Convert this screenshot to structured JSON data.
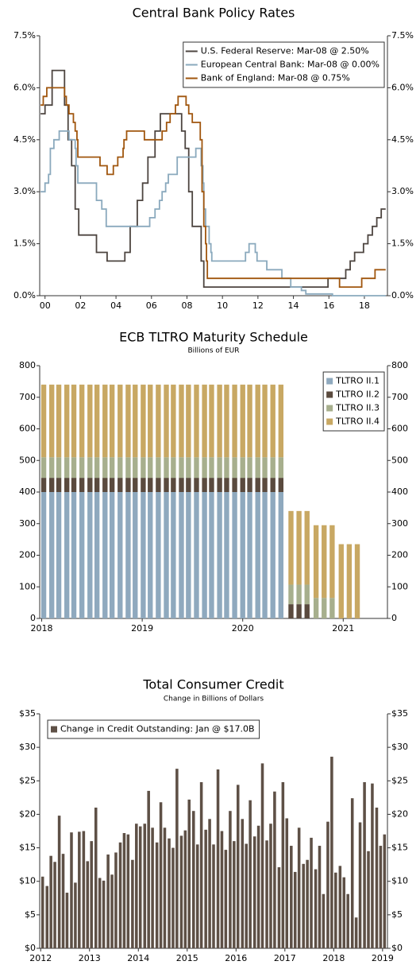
{
  "chart_data": [
    {
      "type": "line",
      "title": "Central Bank Policy Rates",
      "step": true,
      "legend": "top-right",
      "xlim": [
        1999.7,
        2019.3
      ],
      "xticks": [
        {
          "value": 2000,
          "label": "00"
        },
        {
          "value": 2002,
          "label": "02"
        },
        {
          "value": 2004,
          "label": "04"
        },
        {
          "value": 2006,
          "label": "06"
        },
        {
          "value": 2008,
          "label": "08"
        },
        {
          "value": 2010,
          "label": "10"
        },
        {
          "value": 2012,
          "label": "12"
        },
        {
          "value": 2014,
          "label": "14"
        },
        {
          "value": 2016,
          "label": "16"
        },
        {
          "value": 2018,
          "label": "18"
        }
      ],
      "ylim": [
        0,
        7.5
      ],
      "yticks": [
        {
          "value": 0,
          "label": "0.0%"
        },
        {
          "value": 1.5,
          "label": "1.5%"
        },
        {
          "value": 3,
          "label": "3.0%"
        },
        {
          "value": 4.5,
          "label": "4.5%"
        },
        {
          "value": 6,
          "label": "6.0%"
        },
        {
          "value": 7.5,
          "label": "7.5%"
        }
      ],
      "y2lim": [
        0,
        7.5
      ],
      "y2ticks": [
        {
          "value": 0,
          "label": "0.0%"
        },
        {
          "value": 1.5,
          "label": "1.5%"
        },
        {
          "value": 3,
          "label": "3.0%"
        },
        {
          "value": 4.5,
          "label": "4.5%"
        },
        {
          "value": 6,
          "label": "6.0%"
        },
        {
          "value": 7.5,
          "label": "7.5%"
        }
      ],
      "series": [
        {
          "name": "U.S. Federal Reserve: Mar-08 @ 2.50%",
          "color": "#4d4540",
          "x": [
            1999.75,
            2000.0,
            2000.4,
            2001.0,
            2001.1,
            2001.3,
            2001.5,
            2001.7,
            2001.9,
            2002.9,
            2003.5,
            2004.5,
            2004.8,
            2005.2,
            2005.5,
            2005.8,
            2006.2,
            2006.5,
            2007.7,
            2007.9,
            2008.1,
            2008.3,
            2008.8,
            2008.95,
            2015.95,
            2016.95,
            2017.2,
            2017.45,
            2017.95,
            2018.2,
            2018.45,
            2018.7,
            2018.95,
            2019.2
          ],
          "values": [
            5.25,
            5.5,
            6.5,
            6.5,
            5.5,
            4.5,
            3.75,
            2.5,
            1.75,
            1.25,
            1.0,
            1.25,
            2.0,
            2.75,
            3.25,
            4.0,
            4.75,
            5.25,
            4.75,
            4.25,
            3.0,
            2.0,
            1.0,
            0.25,
            0.5,
            0.75,
            1.0,
            1.25,
            1.5,
            1.75,
            2.0,
            2.25,
            2.5,
            2.5
          ]
        },
        {
          "name": "European Central Bank: Mar-08 @ 0.00%",
          "color": "#8aa9bd",
          "x": [
            1999.75,
            2000.0,
            2000.2,
            2000.3,
            2000.5,
            2000.8,
            2001.35,
            2001.7,
            2001.75,
            2001.85,
            2002.9,
            2003.2,
            2003.45,
            2005.9,
            2006.2,
            2006.45,
            2006.6,
            2006.8,
            2006.95,
            2007.45,
            2008.5,
            2008.8,
            2008.9,
            2008.95,
            2009.05,
            2009.25,
            2009.35,
            2009.4,
            2011.3,
            2011.5,
            2011.85,
            2011.95,
            2012.5,
            2013.35,
            2013.85,
            2014.45,
            2014.7,
            2016.2,
            2019.2
          ],
          "values": [
            3.0,
            3.25,
            3.5,
            4.25,
            4.5,
            4.75,
            4.5,
            4.25,
            3.75,
            3.25,
            2.75,
            2.5,
            2.0,
            2.25,
            2.5,
            2.75,
            3.0,
            3.25,
            3.5,
            4.0,
            4.25,
            3.75,
            3.25,
            2.5,
            2.0,
            1.5,
            1.25,
            1.0,
            1.25,
            1.5,
            1.25,
            1.0,
            0.75,
            0.5,
            0.25,
            0.15,
            0.05,
            0.0,
            0.0
          ]
        },
        {
          "name": "Bank of England: Mar-08 @ 0.75%",
          "color": "#a0560e",
          "x": [
            1999.75,
            1999.9,
            2000.1,
            2001.1,
            2001.2,
            2001.35,
            2001.6,
            2001.7,
            2001.8,
            2001.85,
            2003.1,
            2003.5,
            2003.85,
            2004.1,
            2004.4,
            2004.45,
            2004.6,
            2005.6,
            2006.6,
            2006.85,
            2007.05,
            2007.35,
            2007.5,
            2007.95,
            2008.1,
            2008.3,
            2008.75,
            2008.85,
            2008.95,
            2009.05,
            2009.1,
            2009.15,
            2016.6,
            2017.85,
            2018.6,
            2019.2
          ],
          "values": [
            5.5,
            5.75,
            6.0,
            5.75,
            5.5,
            5.25,
            5.0,
            4.75,
            4.5,
            4.0,
            3.75,
            3.5,
            3.75,
            4.0,
            4.25,
            4.5,
            4.75,
            4.5,
            4.75,
            5.0,
            5.25,
            5.5,
            5.75,
            5.5,
            5.25,
            5.0,
            4.5,
            3.0,
            2.0,
            1.5,
            1.0,
            0.5,
            0.25,
            0.5,
            0.75,
            0.75
          ]
        }
      ]
    },
    {
      "type": "bar",
      "stacked": true,
      "title": "ECB TLTRO Maturity Schedule",
      "subtitle": "Billions of EUR",
      "legend": "top-right",
      "xlim": [
        2017.98,
        2021.44
      ],
      "xticks": [
        2018,
        2019,
        2020,
        2021
      ],
      "ylim": [
        0,
        800
      ],
      "yticks": [
        0,
        100,
        200,
        300,
        400,
        500,
        600,
        700,
        800
      ],
      "y2lim": [
        0,
        800
      ],
      "y2ticks": [
        0,
        100,
        200,
        300,
        400,
        500,
        600,
        700,
        800
      ],
      "x": [
        2018.02,
        2018.1,
        2018.17,
        2018.25,
        2018.32,
        2018.4,
        2018.48,
        2018.55,
        2018.63,
        2018.7,
        2018.78,
        2018.86,
        2018.93,
        2019.01,
        2019.08,
        2019.16,
        2019.24,
        2019.31,
        2019.39,
        2019.46,
        2019.54,
        2019.62,
        2019.69,
        2019.77,
        2019.84,
        2019.92,
        2020.0,
        2020.07,
        2020.15,
        2020.22,
        2020.3,
        2020.38,
        2020.48,
        2020.56,
        2020.64,
        2020.73,
        2020.81,
        2020.89,
        2020.98,
        2021.06,
        2021.14
      ],
      "series": [
        {
          "name": "TLTRO II.1",
          "color": "#8fa9be",
          "values": [
            400,
            400,
            400,
            400,
            400,
            400,
            400,
            400,
            400,
            400,
            400,
            400,
            400,
            400,
            400,
            400,
            400,
            400,
            400,
            400,
            400,
            400,
            400,
            400,
            400,
            400,
            400,
            400,
            400,
            400,
            400,
            400,
            0,
            0,
            0,
            0,
            0,
            0,
            0,
            0,
            0
          ]
        },
        {
          "name": "TLTRO II.2",
          "color": "#5a4a3e",
          "values": [
            45,
            45,
            45,
            45,
            45,
            45,
            45,
            45,
            45,
            45,
            45,
            45,
            45,
            45,
            45,
            45,
            45,
            45,
            45,
            45,
            45,
            45,
            45,
            45,
            45,
            45,
            45,
            45,
            45,
            45,
            45,
            45,
            45,
            45,
            45,
            0,
            0,
            0,
            0,
            0,
            0
          ]
        },
        {
          "name": "TLTRO II.3",
          "color": "#a7af8d",
          "values": [
            65,
            65,
            65,
            65,
            65,
            65,
            65,
            65,
            65,
            65,
            65,
            65,
            65,
            65,
            65,
            65,
            65,
            65,
            65,
            65,
            65,
            65,
            65,
            65,
            65,
            65,
            65,
            65,
            65,
            65,
            65,
            65,
            62,
            62,
            62,
            65,
            65,
            65,
            0,
            0,
            0
          ]
        },
        {
          "name": "TLTRO II.4",
          "color": "#c8a863",
          "values": [
            230,
            230,
            230,
            230,
            230,
            230,
            230,
            230,
            230,
            230,
            230,
            230,
            230,
            230,
            230,
            230,
            230,
            230,
            230,
            230,
            230,
            230,
            230,
            230,
            230,
            230,
            230,
            230,
            230,
            230,
            230,
            230,
            233,
            233,
            233,
            230,
            230,
            230,
            235,
            235,
            235
          ]
        }
      ]
    },
    {
      "type": "bar",
      "title": "Total Consumer Credit",
      "subtitle": "Change in Billions of Dollars",
      "legend": "top-left",
      "xlim": [
        2011.98,
        2019.1
      ],
      "xticks": [
        2012,
        2013,
        2014,
        2015,
        2016,
        2017,
        2018,
        2019
      ],
      "ylim": [
        0,
        35
      ],
      "yticks": [
        {
          "value": 0,
          "label": "$0"
        },
        {
          "value": 5,
          "label": "$5"
        },
        {
          "value": 10,
          "label": "$10"
        },
        {
          "value": 15,
          "label": "$15"
        },
        {
          "value": 20,
          "label": "$20"
        },
        {
          "value": 25,
          "label": "$25"
        },
        {
          "value": 30,
          "label": "$30"
        },
        {
          "value": 35,
          "label": "$35"
        }
      ],
      "y2lim": [
        0,
        35
      ],
      "y2ticks": [
        {
          "value": 0,
          "label": "$0"
        },
        {
          "value": 5,
          "label": "$5"
        },
        {
          "value": 10,
          "label": "$10"
        },
        {
          "value": 15,
          "label": "$15"
        },
        {
          "value": 20,
          "label": "$20"
        },
        {
          "value": 25,
          "label": "$25"
        },
        {
          "value": 30,
          "label": "$30"
        },
        {
          "value": 35,
          "label": "$35"
        }
      ],
      "x": [
        2012.04,
        2012.13,
        2012.21,
        2012.29,
        2012.38,
        2012.46,
        2012.54,
        2012.63,
        2012.71,
        2012.79,
        2012.88,
        2012.96,
        2013.04,
        2013.13,
        2013.21,
        2013.29,
        2013.38,
        2013.46,
        2013.54,
        2013.63,
        2013.71,
        2013.79,
        2013.88,
        2013.96,
        2014.04,
        2014.13,
        2014.21,
        2014.29,
        2014.38,
        2014.46,
        2014.54,
        2014.63,
        2014.71,
        2014.79,
        2014.88,
        2014.96,
        2015.04,
        2015.13,
        2015.21,
        2015.29,
        2015.38,
        2015.46,
        2015.54,
        2015.63,
        2015.71,
        2015.79,
        2015.88,
        2015.96,
        2016.04,
        2016.13,
        2016.21,
        2016.29,
        2016.38,
        2016.46,
        2016.54,
        2016.63,
        2016.71,
        2016.79,
        2016.88,
        2016.96,
        2017.04,
        2017.13,
        2017.21,
        2017.29,
        2017.38,
        2017.46,
        2017.54,
        2017.63,
        2017.71,
        2017.79,
        2017.88,
        2017.96,
        2018.04,
        2018.13,
        2018.21,
        2018.29,
        2018.38,
        2018.46,
        2018.54,
        2018.63,
        2018.71,
        2018.79,
        2018.88,
        2018.96,
        2019.04
      ],
      "series": [
        {
          "name": "Change in Credit Outstanding: Jan @ $17.0B",
          "color": "#5e5046",
          "values": [
            10.7,
            9.3,
            13.8,
            12.9,
            19.8,
            14.1,
            8.3,
            17.3,
            9.8,
            17.4,
            17.5,
            13.0,
            16.0,
            21.0,
            10.5,
            10.1,
            14.0,
            11.0,
            14.3,
            15.8,
            17.2,
            17.0,
            13.2,
            18.6,
            18.2,
            18.6,
            23.5,
            18.0,
            15.8,
            21.8,
            18.0,
            16.4,
            15.0,
            26.8,
            16.8,
            17.6,
            22.2,
            20.5,
            15.5,
            24.8,
            17.7,
            19.3,
            15.5,
            26.7,
            17.5,
            14.7,
            20.5,
            16.0,
            24.4,
            19.3,
            15.6,
            22.1,
            16.7,
            18.3,
            27.6,
            16.1,
            18.6,
            23.4,
            12.1,
            24.8,
            19.4,
            15.3,
            11.4,
            18.0,
            12.6,
            13.2,
            16.5,
            11.8,
            15.3,
            8.1,
            18.9,
            28.6,
            11.3,
            12.3,
            10.6,
            8.1,
            22.4,
            4.6,
            18.8,
            24.8,
            14.5,
            24.6,
            21.0,
            15.3,
            17.0
          ]
        }
      ]
    }
  ]
}
